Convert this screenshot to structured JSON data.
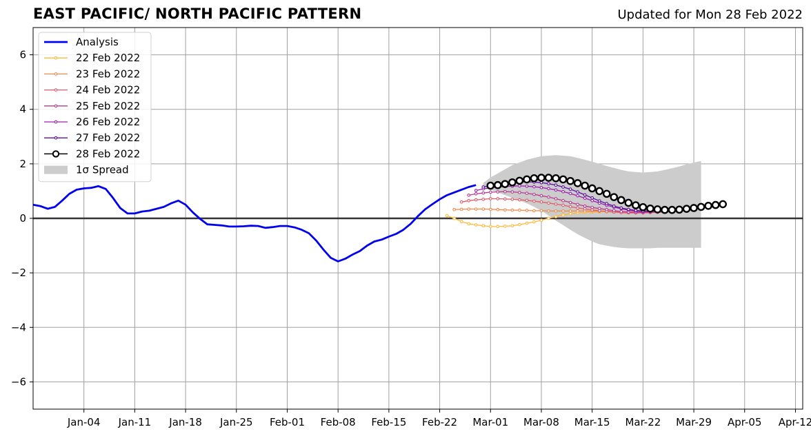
{
  "chart_data": {
    "type": "line",
    "title": "EAST PACIFIC/ NORTH PACIFIC PATTERN",
    "subtitle": "Updated for Mon 28 Feb 2022",
    "xlabel": "",
    "ylabel": "",
    "ylim": [
      -7,
      7
    ],
    "yticks": [
      -6,
      -4,
      -2,
      0,
      2,
      4,
      6
    ],
    "ytick_labels": [
      "−6",
      "−4",
      "−2",
      "0",
      "2",
      "4",
      "6"
    ],
    "x_range_days": [
      -4,
      102
    ],
    "xticks": [
      {
        "label": "Jan-04",
        "day": 3
      },
      {
        "label": "Jan-11",
        "day": 10
      },
      {
        "label": "Jan-18",
        "day": 17
      },
      {
        "label": "Jan-25",
        "day": 24
      },
      {
        "label": "Feb-01",
        "day": 31
      },
      {
        "label": "Feb-08",
        "day": 38
      },
      {
        "label": "Feb-15",
        "day": 45
      },
      {
        "label": "Feb-22",
        "day": 52
      },
      {
        "label": "Mar-01",
        "day": 59
      },
      {
        "label": "Mar-08",
        "day": 66
      },
      {
        "label": "Mar-15",
        "day": 73
      },
      {
        "label": "Mar-22",
        "day": 80
      },
      {
        "label": "Mar-29",
        "day": 87
      },
      {
        "label": "Apr-05",
        "day": 94
      },
      {
        "label": "Apr-12",
        "day": 101
      }
    ],
    "grid": true,
    "legend_position": "upper-left",
    "spread_label": "1σ Spread",
    "spread_color": "#cccccc",
    "spread": {
      "start_day": 58,
      "upper": [
        1.3,
        1.5,
        1.65,
        1.8,
        1.95,
        2.05,
        2.15,
        2.22,
        2.28,
        2.3,
        2.32,
        2.3,
        2.28,
        2.22,
        2.15,
        2.08,
        2.0,
        1.92,
        1.85,
        1.78,
        1.72,
        1.7,
        1.68,
        1.7,
        1.72,
        1.78,
        1.84,
        1.9,
        1.98,
        2.05,
        2.1
      ],
      "lower": [
        1.1,
        1.05,
        0.95,
        0.85,
        0.75,
        0.65,
        0.55,
        0.42,
        0.28,
        0.1,
        -0.08,
        -0.25,
        -0.42,
        -0.58,
        -0.72,
        -0.85,
        -0.95,
        -1.0,
        -1.05,
        -1.08,
        -1.1,
        -1.1,
        -1.1,
        -1.1,
        -1.08,
        -1.08,
        -1.08,
        -1.08,
        -1.08,
        -1.08,
        -1.08
      ]
    },
    "series": [
      {
        "name": "Analysis",
        "color": "#0000ee",
        "style": "analysis",
        "start_day": -4,
        "values": [
          0.5,
          0.45,
          0.35,
          0.42,
          0.65,
          0.9,
          1.05,
          1.1,
          1.12,
          1.18,
          1.08,
          0.75,
          0.38,
          0.18,
          0.18,
          0.25,
          0.28,
          0.35,
          0.42,
          0.55,
          0.65,
          0.5,
          0.22,
          -0.02,
          -0.22,
          -0.24,
          -0.26,
          -0.3,
          -0.3,
          -0.29,
          -0.27,
          -0.28,
          -0.35,
          -0.32,
          -0.28,
          -0.28,
          -0.33,
          -0.42,
          -0.55,
          -0.82,
          -1.15,
          -1.45,
          -1.58,
          -1.48,
          -1.33,
          -1.2,
          -1.0,
          -0.85,
          -0.78,
          -0.67,
          -0.57,
          -0.42,
          -0.2,
          0.08,
          0.33,
          0.52,
          0.7,
          0.85,
          0.95,
          1.05,
          1.15,
          1.22
        ]
      },
      {
        "name": "22 Feb 2022",
        "color": "#fcb93a",
        "style": "forecast",
        "start_day": 53,
        "values": [
          0.1,
          0.0,
          -0.12,
          -0.2,
          -0.24,
          -0.27,
          -0.3,
          -0.3,
          -0.29,
          -0.27,
          -0.23,
          -0.18,
          -0.13,
          -0.07,
          0.0,
          0.06,
          0.12,
          0.17,
          0.2,
          0.22,
          0.23,
          0.24,
          0.24,
          0.24,
          0.24,
          0.24,
          0.24,
          0.24,
          0.24,
          0.25,
          0.25
        ]
      },
      {
        "name": "23 Feb 2022",
        "color": "#f08a4b",
        "style": "forecast",
        "start_day": 54,
        "values": [
          0.32,
          0.33,
          0.34,
          0.34,
          0.34,
          0.33,
          0.32,
          0.31,
          0.3,
          0.3,
          0.29,
          0.28,
          0.28,
          0.27,
          0.27,
          0.27,
          0.27,
          0.27,
          0.27,
          0.27,
          0.26,
          0.26,
          0.25,
          0.25,
          0.24,
          0.24,
          0.24,
          0.24,
          0.24,
          0.25,
          0.25
        ]
      },
      {
        "name": "24 Feb 2022",
        "color": "#e05a6a",
        "style": "forecast",
        "start_day": 55,
        "values": [
          0.6,
          0.65,
          0.68,
          0.7,
          0.72,
          0.72,
          0.71,
          0.7,
          0.68,
          0.66,
          0.63,
          0.6,
          0.56,
          0.52,
          0.48,
          0.43,
          0.38,
          0.35,
          0.31,
          0.28,
          0.25,
          0.23,
          0.21,
          0.2,
          0.2,
          0.2,
          0.21,
          0.22,
          0.23,
          0.25,
          0.26
        ]
      },
      {
        "name": "25 Feb 2022",
        "color": "#b83a8e",
        "style": "forecast",
        "start_day": 56,
        "values": [
          0.85,
          0.9,
          0.93,
          0.96,
          0.97,
          0.98,
          0.97,
          0.95,
          0.92,
          0.88,
          0.83,
          0.78,
          0.72,
          0.65,
          0.58,
          0.51,
          0.45,
          0.4,
          0.36,
          0.32,
          0.28,
          0.25,
          0.23,
          0.22,
          0.22,
          0.23,
          0.24,
          0.25,
          0.27,
          0.29,
          0.3
        ]
      },
      {
        "name": "26 Feb 2022",
        "color": "#9b1fb0",
        "style": "forecast",
        "start_day": 57,
        "values": [
          1.02,
          1.08,
          1.12,
          1.15,
          1.17,
          1.18,
          1.19,
          1.18,
          1.16,
          1.13,
          1.09,
          1.04,
          0.98,
          0.91,
          0.83,
          0.74,
          0.65,
          0.56,
          0.48,
          0.41,
          0.35,
          0.3,
          0.27,
          0.25,
          0.25,
          0.25,
          0.26,
          0.28,
          0.3,
          0.32,
          0.34
        ]
      },
      {
        "name": "27 Feb 2022",
        "color": "#5b0ea0",
        "style": "forecast",
        "start_day": 58,
        "values": [
          1.15,
          1.2,
          1.24,
          1.28,
          1.31,
          1.33,
          1.34,
          1.33,
          1.31,
          1.27,
          1.22,
          1.15,
          1.07,
          0.97,
          0.86,
          0.75,
          0.64,
          0.54,
          0.45,
          0.38,
          0.33,
          0.29,
          0.27,
          0.27,
          0.28,
          0.3,
          0.33,
          0.36,
          0.39,
          0.42,
          0.45
        ]
      },
      {
        "name": "28 Feb 2022",
        "color": "#000000",
        "style": "current",
        "start_day": 59,
        "values": [
          1.2,
          1.22,
          1.26,
          1.32,
          1.38,
          1.43,
          1.47,
          1.49,
          1.49,
          1.47,
          1.43,
          1.37,
          1.29,
          1.2,
          1.1,
          1.0,
          0.9,
          0.78,
          0.67,
          0.57,
          0.48,
          0.41,
          0.36,
          0.33,
          0.31,
          0.31,
          0.32,
          0.35,
          0.38,
          0.42,
          0.46,
          0.49,
          0.52
        ]
      }
    ]
  }
}
